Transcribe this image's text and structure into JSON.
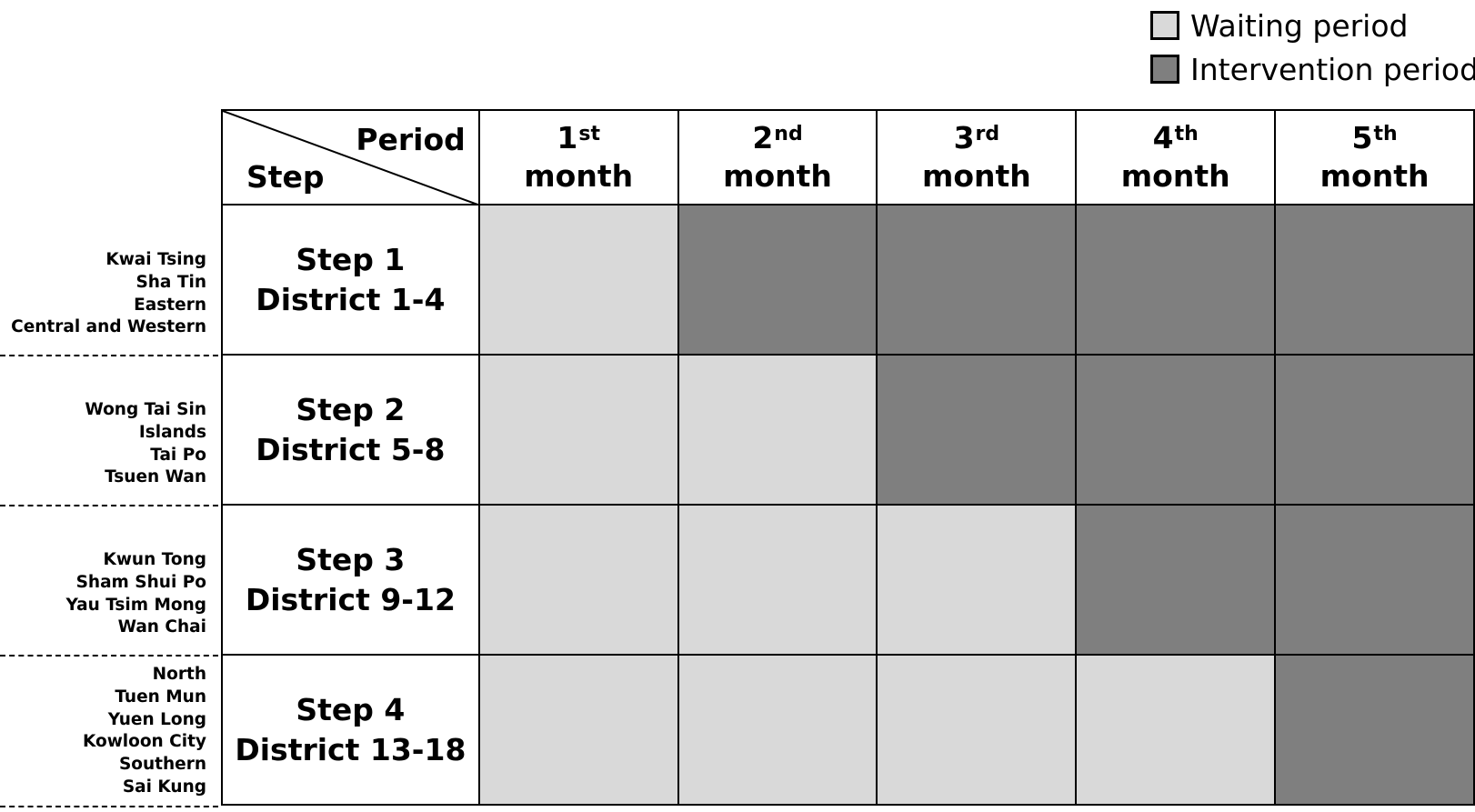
{
  "legend": [
    {
      "label": "Waiting period",
      "color": "#d9d9d9"
    },
    {
      "label": "Intervention period",
      "color": "#7f7f7f"
    }
  ],
  "table": {
    "corner_top": "Period",
    "corner_bottom": "Step",
    "months": [
      {
        "num": "1",
        "suffix": "st",
        "word": "month"
      },
      {
        "num": "2",
        "suffix": "nd",
        "word": "month"
      },
      {
        "num": "3",
        "suffix": "rd",
        "word": "month"
      },
      {
        "num": "4",
        "suffix": "th",
        "word": "month"
      },
      {
        "num": "5",
        "suffix": "th",
        "word": "month"
      }
    ],
    "steps": [
      {
        "line1": "Step 1",
        "line2": "District 1-4",
        "districts": [
          "Kwai Tsing",
          "Sha Tin",
          "Eastern",
          "Central and Western"
        ],
        "cells": [
          "waiting",
          "intervention",
          "intervention",
          "intervention",
          "intervention"
        ]
      },
      {
        "line1": "Step 2",
        "line2": "District 5-8",
        "districts": [
          "Wong Tai Sin",
          "Islands",
          "Tai Po",
          "Tsuen Wan"
        ],
        "cells": [
          "waiting",
          "waiting",
          "intervention",
          "intervention",
          "intervention"
        ]
      },
      {
        "line1": "Step 3",
        "line2": "District 9-12",
        "districts": [
          "Kwun Tong",
          "Sham Shui Po",
          "Yau Tsim Mong",
          "Wan Chai"
        ],
        "cells": [
          "waiting",
          "waiting",
          "waiting",
          "intervention",
          "intervention"
        ]
      },
      {
        "line1": "Step 4",
        "line2": "District 13-18",
        "districts": [
          "North",
          "Tuen Mun",
          "Yuen Long",
          "Kowloon City",
          "Southern",
          "Sai Kung"
        ],
        "cells": [
          "waiting",
          "waiting",
          "waiting",
          "waiting",
          "intervention"
        ]
      }
    ]
  }
}
